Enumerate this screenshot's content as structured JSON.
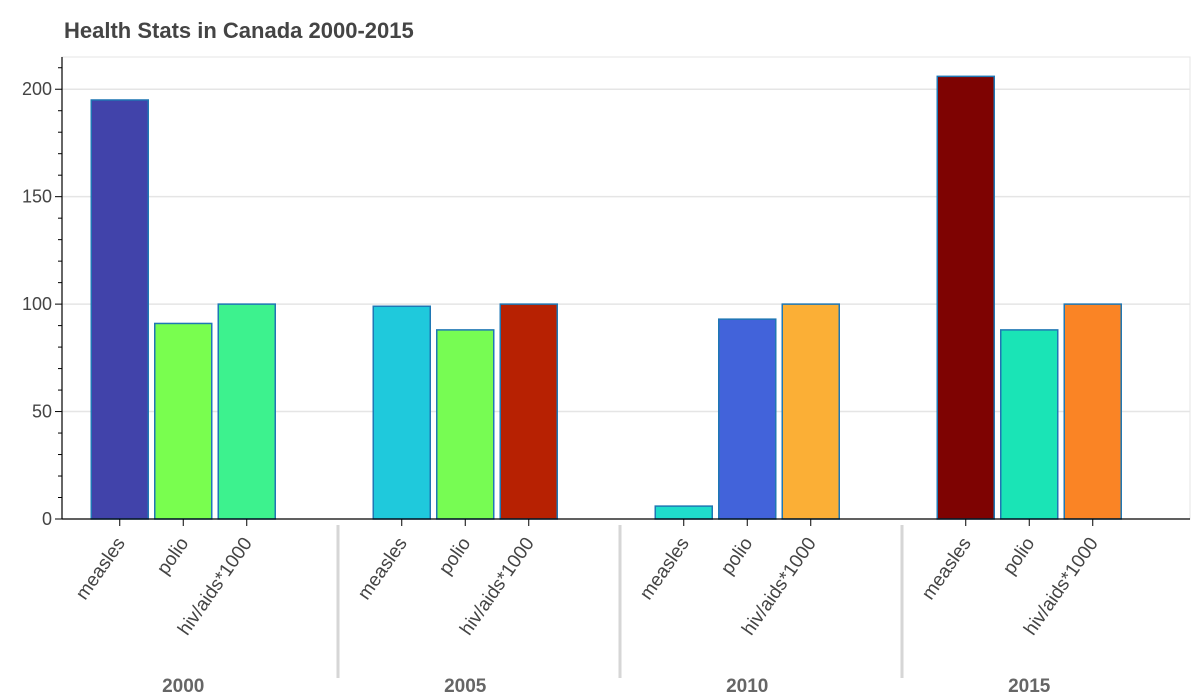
{
  "chart_data": {
    "type": "bar",
    "title": "Health Stats in Canada 2000-2015",
    "xlabel": "",
    "ylabel": "",
    "ylim": [
      0,
      215
    ],
    "yticks": [
      0,
      50,
      100,
      150,
      200
    ],
    "grid": true,
    "legend": "none",
    "groups": [
      "2000",
      "2005",
      "2010",
      "2015"
    ],
    "subcategories": [
      "measles",
      "polio",
      "hiv/aids*1000"
    ],
    "bars": [
      {
        "group": "2000",
        "category": "measles",
        "value": 195,
        "color": "#4143aa"
      },
      {
        "group": "2000",
        "category": "polio",
        "value": 91,
        "color": "#79fe4f"
      },
      {
        "group": "2000",
        "category": "hiv/aids*1000",
        "value": 100,
        "color": "#3df28e"
      },
      {
        "group": "2005",
        "category": "measles",
        "value": 99,
        "color": "#1fc9dc"
      },
      {
        "group": "2005",
        "category": "polio",
        "value": 88,
        "color": "#77fc53"
      },
      {
        "group": "2005",
        "category": "hiv/aids*1000",
        "value": 100,
        "color": "#b72102"
      },
      {
        "group": "2010",
        "category": "measles",
        "value": 6,
        "color": "#1fdccc"
      },
      {
        "group": "2010",
        "category": "polio",
        "value": 93,
        "color": "#4263da"
      },
      {
        "group": "2010",
        "category": "hiv/aids*1000",
        "value": 100,
        "color": "#fbaf36"
      },
      {
        "group": "2015",
        "category": "measles",
        "value": 206,
        "color": "#7e0302"
      },
      {
        "group": "2015",
        "category": "polio",
        "value": 88,
        "color": "#1ae4b6"
      },
      {
        "group": "2015",
        "category": "hiv/aids*1000",
        "value": 100,
        "color": "#fa8425"
      }
    ],
    "bar_outline_color": "#1f77b4"
  }
}
